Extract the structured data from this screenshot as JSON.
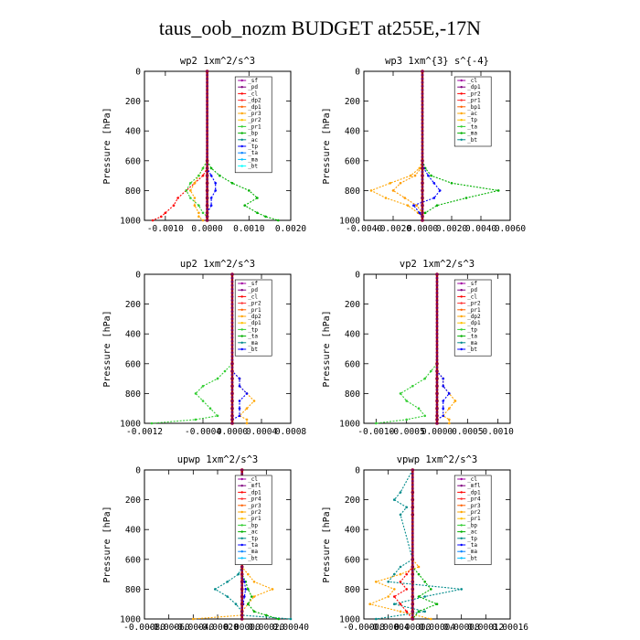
{
  "figure_title": "taus_oob_nozm  BUDGET at255E,-17N",
  "chart_data": [
    {
      "type": "line",
      "title": "wp2  1xm^2/s^3",
      "ylabel": "Pressure [hPa]",
      "ylim": [
        1000,
        0
      ],
      "xlim": [
        -0.0015,
        0.002
      ],
      "xticks": [
        "-0.0010",
        "0.0000",
        "0.0010",
        "0.0020"
      ],
      "xtick_values": [
        -0.001,
        0,
        0.001,
        0.002
      ],
      "yticks": [
        "0",
        "200",
        "400",
        "600",
        "800",
        "1000"
      ],
      "y": [
        0,
        600,
        650,
        700,
        750,
        800,
        850,
        900,
        950,
        975,
        1000
      ],
      "legend": [
        "_sf",
        "_pd",
        "_cl",
        "_dp2",
        "_dp1",
        "_pr3",
        "_pr2",
        "_pr1",
        "_bp",
        "_ac",
        "_tp",
        "_ta",
        "_ma",
        "_bt"
      ],
      "series": [
        {
          "name": "_dp1",
          "color": "#ff0000",
          "values": [
            0,
            0,
            0,
            -0.0001,
            -0.0003,
            -0.0005,
            -0.0007,
            -0.0008,
            -0.001,
            -0.0011,
            -0.0013
          ]
        },
        {
          "name": "_pr1",
          "color": "#ffa500",
          "values": [
            0,
            0,
            -0.0001,
            -0.0002,
            -0.0003,
            -0.0004,
            -0.0003,
            -0.0003,
            -0.0002,
            -0.0002,
            -0.0001
          ]
        },
        {
          "name": "_bp",
          "color": "#00b000",
          "values": [
            0,
            0,
            0.0001,
            0.0003,
            0.0006,
            0.001,
            0.0012,
            0.0009,
            0.0012,
            0.0014,
            0.0017
          ]
        },
        {
          "name": "_ac",
          "color": "#32cd32",
          "values": [
            0,
            0,
            -0.0001,
            -0.0002,
            -0.0004,
            -0.0005,
            -0.0004,
            -0.0002,
            -0.0001,
            0,
            0
          ]
        },
        {
          "name": "_tp",
          "color": "#0000ff",
          "values": [
            0,
            0,
            0,
            0.0001,
            0.0002,
            0.0002,
            0.0001,
            0.0001,
            0,
            0,
            0
          ]
        },
        {
          "name": "_bt",
          "color": "#b00000",
          "values": [
            0,
            0,
            0,
            0,
            0,
            0,
            0,
            0,
            0,
            0,
            0
          ]
        }
      ]
    },
    {
      "type": "line",
      "title": "wp3  1xm^{3} s^{-4}",
      "ylabel": "Pressure [hPa]",
      "ylim": [
        1000,
        0
      ],
      "xlim": [
        -0.004,
        0.006
      ],
      "xticks": [
        "-0.0040",
        "-0.0020",
        "0.0000",
        "0.0020",
        "0.0040",
        "0.0060"
      ],
      "xtick_values": [
        -0.004,
        -0.002,
        0,
        0.002,
        0.004,
        0.006
      ],
      "yticks": [
        "0",
        "200",
        "400",
        "600",
        "800",
        "1000"
      ],
      "y": [
        0,
        600,
        650,
        700,
        750,
        800,
        850,
        900,
        950,
        975,
        1000
      ],
      "legend": [
        "_cl",
        "_dp1",
        "_pr2",
        "_pr1",
        "_bp1",
        "_ac",
        "_tp",
        "_ta",
        "_ma",
        "_bt"
      ],
      "series": [
        {
          "name": "_pr1",
          "color": "#ffa500",
          "values": [
            0,
            0,
            -0.0002,
            -0.0008,
            -0.0022,
            -0.0035,
            -0.0025,
            -0.001,
            -0.0003,
            0,
            0
          ]
        },
        {
          "name": "_ac",
          "color": "#00b000",
          "values": [
            0,
            0,
            0.0002,
            0.0006,
            0.002,
            0.0052,
            0.003,
            0.001,
            0.0002,
            0,
            0
          ]
        },
        {
          "name": "_tp",
          "color": "#0000ff",
          "values": [
            0,
            0,
            0.0001,
            0.0004,
            0.0008,
            0.0012,
            0.0008,
            -0.0006,
            -0.0002,
            0,
            0
          ]
        },
        {
          "name": "_pr2",
          "color": "#ff9a00",
          "values": [
            0,
            0,
            -0.0001,
            -0.0005,
            -0.0015,
            -0.002,
            -0.0012,
            -0.0004,
            0,
            0,
            0
          ]
        },
        {
          "name": "_bt",
          "color": "#b00000",
          "values": [
            0,
            0,
            0,
            0,
            0,
            0,
            0,
            0,
            0,
            0,
            0
          ]
        }
      ]
    },
    {
      "type": "line",
      "title": "up2  1xm^2/s^3",
      "ylabel": "Pressure [hPa]",
      "ylim": [
        1000,
        0
      ],
      "xlim": [
        -0.0012,
        0.0008
      ],
      "xticks": [
        "-0.0012",
        "-0.0004",
        "0.0000",
        "0.0004",
        "0.0008"
      ],
      "xtick_values": [
        -0.0012,
        -0.0004,
        0,
        0.0004,
        0.0008
      ],
      "yticks": [
        "0",
        "200",
        "400",
        "600",
        "800",
        "1000"
      ],
      "y": [
        0,
        600,
        650,
        700,
        750,
        800,
        850,
        900,
        950,
        975,
        1000
      ],
      "legend": [
        "_sf",
        "_pd",
        "_cl",
        "_pr2",
        "_pr1",
        "_dp2",
        "_dp1",
        "_tp",
        "_ta",
        "_ma",
        "_bt"
      ],
      "series": [
        {
          "name": "_dp1",
          "color": "#32cd32",
          "values": [
            0,
            0,
            -0.0001,
            -0.0002,
            -0.0004,
            -0.0005,
            -0.0004,
            -0.0003,
            -0.0002,
            -0.0005,
            -0.0011
          ]
        },
        {
          "name": "_pr1",
          "color": "#ffa500",
          "values": [
            0,
            0,
            0,
            0.0001,
            0.0001,
            0.0002,
            0.0003,
            0.0002,
            0.0001,
            0.0002,
            0.0002
          ]
        },
        {
          "name": "_tp",
          "color": "#0000ff",
          "values": [
            0,
            0,
            0,
            0.0001,
            0.0001,
            0.0002,
            0.0001,
            0.0001,
            0.0001,
            0,
            0
          ]
        },
        {
          "name": "_bt",
          "color": "#b00000",
          "values": [
            0,
            0,
            0,
            0,
            0,
            0,
            0,
            0,
            0,
            0,
            0
          ]
        }
      ]
    },
    {
      "type": "line",
      "title": "vp2  1xm^2/s^3",
      "ylabel": "Pressure [hPa]",
      "ylim": [
        1000,
        0
      ],
      "xlim": [
        -0.0012,
        0.0012
      ],
      "xticks": [
        "-0.0010",
        "-0.0005",
        "0.0000",
        "0.0005",
        "0.0010"
      ],
      "xtick_values": [
        -0.001,
        -0.0005,
        0,
        0.0005,
        0.001
      ],
      "yticks": [
        "0",
        "200",
        "400",
        "600",
        "800",
        "1000"
      ],
      "y": [
        0,
        600,
        650,
        700,
        750,
        800,
        850,
        900,
        950,
        975,
        1000
      ],
      "legend": [
        "_sf",
        "_pd",
        "_cl",
        "_pr2",
        "_pr1",
        "_dp2",
        "_dp1",
        "_tp",
        "_ta",
        "_ma",
        "_bt"
      ],
      "series": [
        {
          "name": "_dp1",
          "color": "#32cd32",
          "values": [
            0,
            0,
            -0.0001,
            -0.0002,
            -0.0004,
            -0.0006,
            -0.0005,
            -0.0003,
            -0.0002,
            -0.0005,
            -0.001
          ]
        },
        {
          "name": "_pr1",
          "color": "#ffa500",
          "values": [
            0,
            0,
            0,
            0.0001,
            0.0001,
            0.0002,
            0.0003,
            0.0002,
            0.0001,
            0.0002,
            0.0002
          ]
        },
        {
          "name": "_tp",
          "color": "#0000ff",
          "values": [
            0,
            0,
            0,
            0.0001,
            0.0001,
            0.0002,
            0.0001,
            0.0001,
            0.0001,
            0,
            0
          ]
        },
        {
          "name": "_bt",
          "color": "#b00000",
          "values": [
            0,
            0,
            0,
            0,
            0,
            0,
            0,
            0,
            0,
            0,
            0
          ]
        }
      ]
    },
    {
      "type": "line",
      "title": "upwp  1xm^2/s^3",
      "ylabel": "Pressure [hPa]",
      "ylim": [
        1000,
        0
      ],
      "xlim": [
        -0.0008,
        0.0004
      ],
      "xticks": [
        "-0.00080",
        "-0.00060",
        "-0.00040",
        "-0.00020",
        "0.00000",
        "0.00020",
        "0.00040"
      ],
      "xtick_values": [
        -0.0008,
        -0.0006,
        -0.0004,
        -0.0002,
        0,
        0.0002,
        0.0004
      ],
      "yticks": [
        "0",
        "200",
        "400",
        "600",
        "800",
        "1000"
      ],
      "y": [
        0,
        600,
        650,
        700,
        750,
        800,
        850,
        900,
        950,
        975,
        1000
      ],
      "legend": [
        "_cl",
        "_mfl",
        "_dp1",
        "_pr4",
        "_pr3",
        "_pr2",
        "_pr1",
        "_bp",
        "_ac",
        "_tp",
        "_ta",
        "_ma",
        "_bt"
      ],
      "series": [
        {
          "name": "_pr1",
          "color": "#ffa500",
          "values": [
            0,
            0,
            0,
            5e-05,
            0.0001,
            0.00025,
            0.0001,
            5e-05,
            0,
            0,
            -0.0004
          ]
        },
        {
          "name": "_ac",
          "color": "#008b8b",
          "values": [
            0,
            0,
            0,
            -3e-05,
            -0.00012,
            -0.00022,
            -0.00012,
            -5e-05,
            0,
            0,
            0.0004
          ]
        },
        {
          "name": "_bp",
          "color": "#00b000",
          "values": [
            0,
            0,
            0,
            0,
            3e-05,
            5e-05,
            8e-05,
            5e-05,
            0.0001,
            0.0002,
            0.0003
          ]
        },
        {
          "name": "_tp",
          "color": "#0000ff",
          "values": [
            0,
            0,
            0,
            0,
            2e-05,
            3e-05,
            2e-05,
            1e-05,
            0,
            0,
            0
          ]
        },
        {
          "name": "_bt",
          "color": "#b00000",
          "values": [
            0,
            0,
            0,
            0,
            0,
            0,
            0,
            0,
            0,
            0,
            0
          ]
        }
      ]
    },
    {
      "type": "line",
      "title": "vpwp  1xm^2/s^3",
      "ylabel": "Pressure [hPa]",
      "ylim": [
        1000,
        0
      ],
      "xlim": [
        -8e-05,
        0.00016
      ],
      "xticks": [
        "-0.00008",
        "-0.00004",
        "0.00000",
        "0.00004",
        "0.00008",
        "0.00012",
        "0.00016"
      ],
      "xtick_values": [
        -8e-05,
        -4e-05,
        0,
        4e-05,
        8e-05,
        0.00012,
        0.00016
      ],
      "yticks": [
        "0",
        "200",
        "400",
        "600",
        "800",
        "1000"
      ],
      "y": [
        0,
        150,
        200,
        250,
        300,
        600,
        650,
        700,
        750,
        800,
        850,
        900,
        950,
        1000
      ],
      "legend": [
        "_cl",
        "_mfl",
        "_dp1",
        "_pr4",
        "_pr3",
        "_pr2",
        "_pr1",
        "_bp",
        "_ac",
        "_tp",
        "_ta",
        "_ma",
        "_bt"
      ],
      "series": [
        {
          "name": "_ac",
          "color": "#008b8b",
          "values": [
            0,
            -2e-05,
            -3e-05,
            -1e-05,
            -2e-05,
            0,
            -2e-05,
            -3e-05,
            -4e-05,
            8e-05,
            2e-05,
            -3e-05,
            2e-05,
            -6e-05
          ]
        },
        {
          "name": "_pr1",
          "color": "#ffa500",
          "values": [
            0,
            0,
            0,
            0,
            0,
            0,
            1e-05,
            -2e-05,
            -6e-05,
            -3e-05,
            -4e-05,
            -7e-05,
            -2e-05,
            3e-05
          ]
        },
        {
          "name": "_bp",
          "color": "#00b000",
          "values": [
            0,
            0,
            0,
            0,
            0,
            0,
            0,
            1e-05,
            2e-05,
            3e-05,
            1e-05,
            4e-05,
            1e-05,
            0
          ]
        },
        {
          "name": "_dp1",
          "color": "#ff0000",
          "values": [
            0,
            0,
            0,
            0,
            0,
            0,
            0,
            -1e-05,
            -2e-05,
            -1e-05,
            -3e-05,
            -2e-05,
            -1e-05,
            0
          ]
        },
        {
          "name": "_bt",
          "color": "#b00000",
          "values": [
            0,
            0,
            0,
            0,
            0,
            0,
            0,
            0,
            0,
            0,
            0,
            0,
            0,
            0
          ]
        }
      ]
    }
  ]
}
